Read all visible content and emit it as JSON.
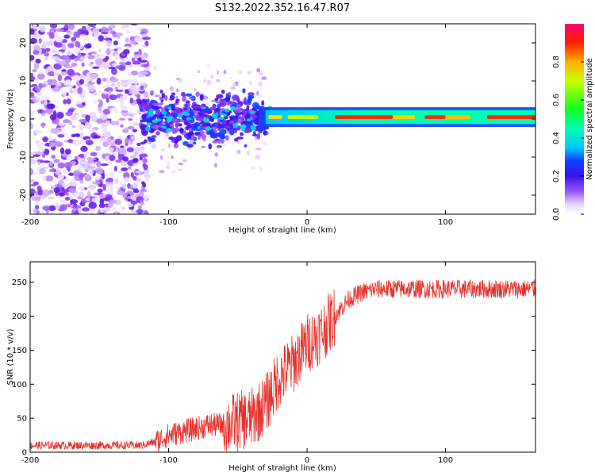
{
  "title": "S132.2022.352.16.47.R07",
  "colors": {
    "snr_line": "#e8302a",
    "background": "#ffffff",
    "axis": "#000000"
  },
  "chart_data": [
    {
      "type": "heatmap",
      "name": "spectrogram",
      "xlabel": "Height of straight line (km)",
      "ylabel": "Frequency (Hz)",
      "xlim": [
        -200,
        165
      ],
      "ylim": [
        -25,
        25
      ],
      "xticks": [
        -200,
        -100,
        0,
        100
      ],
      "yticks": [
        -20,
        -10,
        0,
        10,
        20
      ],
      "signal_band": {
        "description": "narrowband carrier near 0 Hz, visible from about -120 km upward",
        "x_start": -120,
        "center_hz": 0.5,
        "strong_from_km": 20
      },
      "colorbar": {
        "label": "Normalized spectral amplitude",
        "range": [
          0,
          1
        ],
        "ticks": [
          0.0,
          0.2,
          0.4,
          0.6,
          0.8
        ],
        "tick_labels": [
          "0.0",
          "0.2",
          "0.4",
          "0.6",
          "0.8"
        ]
      }
    },
    {
      "type": "line",
      "name": "snr",
      "xlabel": "Height of straight line (km)",
      "ylabel": "SNR (10 * v/v)",
      "xlim": [
        -200,
        165
      ],
      "ylim": [
        0,
        280
      ],
      "xticks": [
        -200,
        -100,
        0,
        100
      ],
      "yticks": [
        0,
        50,
        100,
        150,
        200,
        250
      ],
      "series": [
        {
          "name": "SNR",
          "x": [
            -200,
            -150,
            -120,
            -110,
            -100,
            -90,
            -80,
            -70,
            -60,
            -50,
            -40,
            -30,
            -20,
            -10,
            0,
            10,
            20,
            30,
            40,
            50,
            60,
            80,
            100,
            120,
            140,
            165
          ],
          "y": [
            10,
            10,
            10,
            15,
            25,
            30,
            35,
            40,
            40,
            45,
            50,
            70,
            110,
            130,
            160,
            175,
            200,
            225,
            235,
            240,
            240,
            240,
            240,
            240,
            240,
            240
          ]
        }
      ]
    }
  ]
}
